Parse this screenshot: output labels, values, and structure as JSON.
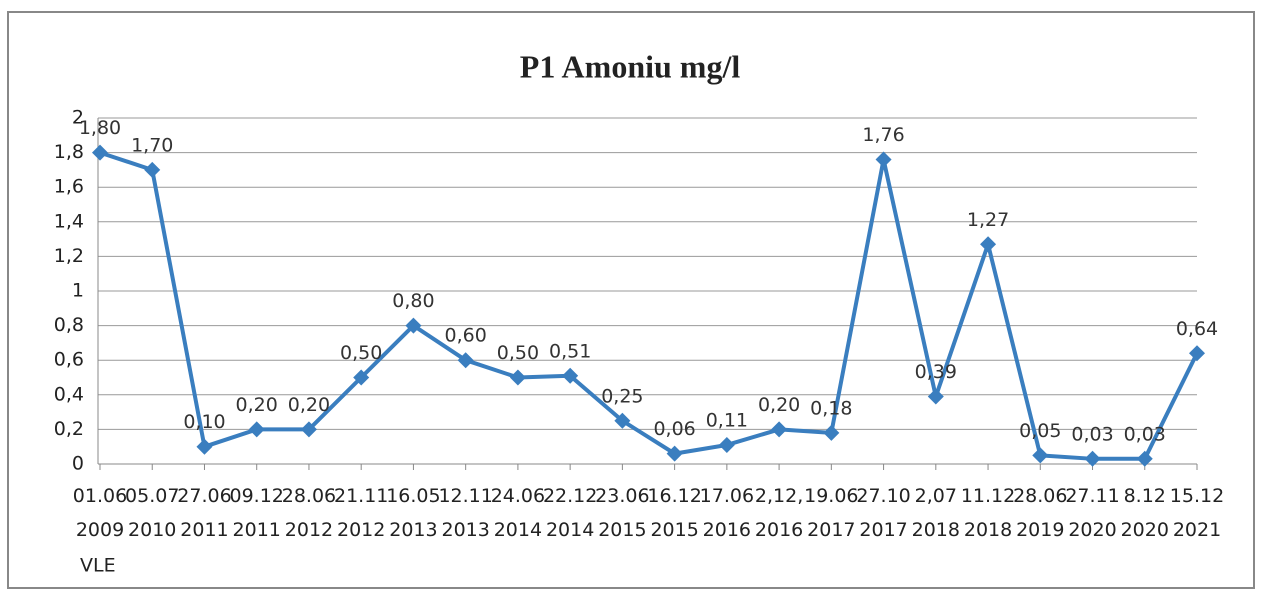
{
  "chart_data": {
    "type": "line",
    "title": "P1 Amoniu mg/l",
    "categories": [
      "01.06 2009",
      "05.07 2010",
      "27.06 2011",
      "09.12 2011",
      "28.06 2012",
      "21.11 2012",
      "16.05 2013",
      "12.11 2013",
      "24.06 2014",
      "22.12 2014",
      "23.06 2015",
      "16.12 2015",
      "17.06 2016",
      "2,12, 2016",
      "19.06 2017",
      "27.10 2017",
      "2,07 2018",
      "11.12 2018",
      "28.06 2019",
      "27.11 2020",
      "8.12 2020",
      "15.12 2021"
    ],
    "annotation": "VLE",
    "series": [
      {
        "name": "P1 Amoniu mg/l",
        "color": "#3a7ebf",
        "values": [
          1.8,
          1.7,
          0.1,
          0.2,
          0.2,
          0.5,
          0.8,
          0.6,
          0.5,
          0.51,
          0.25,
          0.06,
          0.11,
          0.2,
          0.18,
          1.76,
          0.39,
          1.27,
          0.05,
          0.03,
          0.03,
          0.64
        ],
        "value_labels": [
          "1,80",
          "1,70",
          "0,10",
          "0,20",
          "0,20",
          "0,50",
          "0,80",
          "0,60",
          "0,50",
          "0,51",
          "0,25",
          "0,06",
          "0,11",
          "0,20",
          "0,18",
          "1,76",
          "0,39",
          "1,27",
          "0,05",
          "0,03",
          "0,03",
          "0,64"
        ]
      }
    ],
    "ylim": [
      0,
      2
    ],
    "yticks": [
      0,
      {
        "value": 0.2,
        "label": "0,2"
      },
      {
        "value": 0.4,
        "label": "0,4"
      },
      {
        "value": 0.6,
        "label": "0,6"
      },
      {
        "value": 0.8,
        "label": "0,8"
      },
      1,
      {
        "value": 1.2,
        "label": "1,2"
      },
      {
        "value": 1.4,
        "label": "1,4"
      },
      {
        "value": 1.6,
        "label": "1,6"
      },
      {
        "value": 1.8,
        "label": "1,8"
      },
      2
    ],
    "grid": true
  }
}
